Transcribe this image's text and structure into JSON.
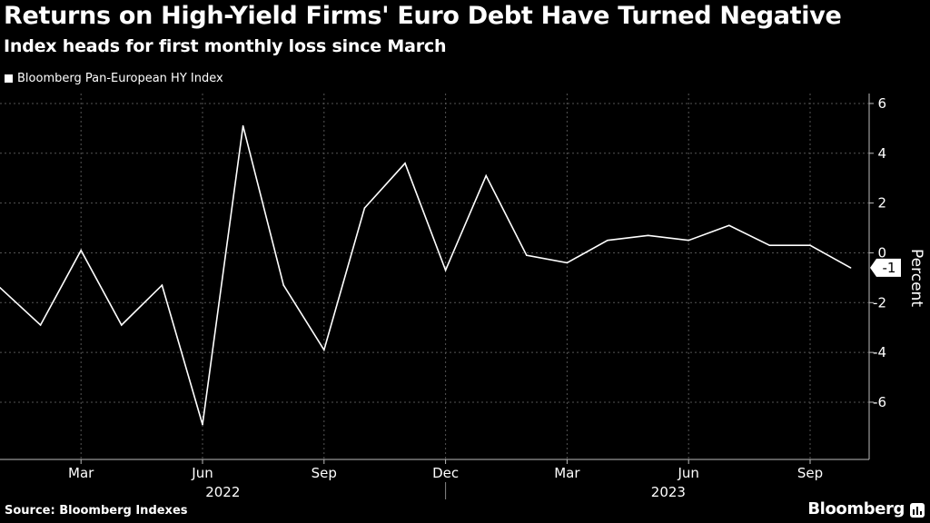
{
  "title": "Returns on High-Yield Firms' Euro Debt Have Turned Negative",
  "subtitle": "Index heads for first monthly loss since March",
  "legend": {
    "label": "Bloomberg Pan-European HY Index"
  },
  "source": "Source: Bloomberg Indexes",
  "brand": "Bloomberg",
  "icons": {
    "legend_swatch": "square-swatch-icon",
    "brand_logo": "bloomberg-bar-chart-icon"
  },
  "colors": {
    "background": "#000000",
    "line": "#ffffff",
    "grid": "#555555",
    "text": "#ffffff"
  },
  "chart_data": {
    "type": "line",
    "title": "Returns on High-Yield Firms' Euro Debt Have Turned Negative",
    "subtitle": "Index heads for first monthly loss since March",
    "ylabel": "Percent",
    "xlabel": "",
    "ylim": [
      -8.3,
      6.4
    ],
    "yticks": [
      6,
      4,
      2,
      0,
      -2,
      -4,
      -6
    ],
    "ytick_labels": [
      "6",
      "4",
      "2",
      "0",
      "-2",
      "-4",
      "-6"
    ],
    "grid": true,
    "legend_position": "top-left",
    "last_value_label": "-1",
    "x_index_range": [
      0,
      21.3
    ],
    "series": [
      {
        "name": "Bloomberg Pan-European HY Index",
        "x": [
          0,
          1,
          2,
          3,
          4,
          5,
          6,
          7,
          8,
          9,
          10,
          11,
          12,
          13,
          14,
          15,
          16,
          17,
          18,
          19,
          20,
          21
        ],
        "values": [
          -1.4,
          -2.9,
          0.1,
          -2.9,
          -1.3,
          -6.9,
          5.1,
          -1.3,
          -3.9,
          1.8,
          3.6,
          -0.7,
          3.1,
          -0.1,
          -0.4,
          0.5,
          0.7,
          0.5,
          1.1,
          0.3,
          0.3,
          -0.6
        ]
      }
    ],
    "x_ticks": [
      {
        "x": 2,
        "label": "Mar"
      },
      {
        "x": 5,
        "label": "Jun"
      },
      {
        "x": 8,
        "label": "Sep"
      },
      {
        "x": 11,
        "label": "Dec"
      },
      {
        "x": 14,
        "label": "Mar"
      },
      {
        "x": 17,
        "label": "Jun"
      },
      {
        "x": 20,
        "label": "Sep"
      }
    ],
    "year_labels": [
      {
        "x": 5.5,
        "label": "2022"
      },
      {
        "x": 16.5,
        "label": "2023"
      }
    ],
    "year_divider_x": 11
  }
}
